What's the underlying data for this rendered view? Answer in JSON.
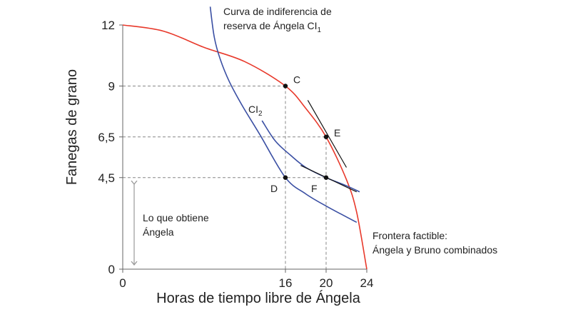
{
  "chart_data": {
    "type": "line",
    "xlabel": "Horas de tiempo libre de Ángela",
    "ylabel": "Fanegas de grano",
    "xlim": [
      0,
      24
    ],
    "ylim": [
      0,
      12
    ],
    "x_ticks": [
      {
        "value": 0,
        "label": "0"
      },
      {
        "value": 16,
        "label": "16"
      },
      {
        "value": 20,
        "label": "20"
      },
      {
        "value": 24,
        "label": "24"
      }
    ],
    "y_ticks": [
      {
        "value": 0,
        "label": "0"
      },
      {
        "value": 4.5,
        "label": "4,5"
      },
      {
        "value": 6.5,
        "label": "6,5"
      },
      {
        "value": 9,
        "label": "9"
      },
      {
        "value": 12,
        "label": "12"
      }
    ],
    "grid": false,
    "colors": {
      "frontier": "#e8392b",
      "indifference": "#3a4fa3",
      "guides": "#888888",
      "tangent": "#111111",
      "points": "#111111"
    },
    "series": [
      {
        "key": "frontier",
        "x": [
          0,
          4,
          8,
          12,
          16,
          18,
          20,
          22,
          23,
          24
        ],
        "y": [
          12,
          11.7,
          10.9,
          10.2,
          9,
          7.9,
          6.5,
          4.4,
          2.8,
          0
        ]
      },
      {
        "key": "ci1",
        "x": [
          8.6,
          9.0,
          9.6,
          10.5,
          11.8,
          13.5,
          16,
          18,
          20,
          21.5,
          23
        ],
        "y": [
          12.9,
          11.4,
          10.3,
          9.2,
          8.0,
          6.6,
          4.5,
          3.7,
          3.1,
          2.7,
          2.3
        ]
      },
      {
        "key": "ci2",
        "x": [
          13.7,
          15,
          16.5,
          18,
          20,
          22,
          23.3
        ],
        "y": [
          7.3,
          6.3,
          5.6,
          5.0,
          4.5,
          4.1,
          3.8
        ]
      }
    ],
    "tangent_lines": [
      {
        "at": "E",
        "x": [
          18.2,
          22.0
        ],
        "y": [
          8.3,
          5.0
        ]
      },
      {
        "at": "F",
        "x": [
          17.5,
          23.0
        ],
        "y": [
          5.1,
          3.8
        ]
      }
    ],
    "points": [
      {
        "label": "C",
        "x": 16,
        "y": 9
      },
      {
        "label": "E",
        "x": 20,
        "y": 6.5
      },
      {
        "label": "D",
        "x": 16,
        "y": 4.5
      },
      {
        "label": "F",
        "x": 20,
        "y": 4.5
      }
    ],
    "annotations": {
      "ci1_line1": "Curva de indiferencia de",
      "ci1_line2": "reserva de Ángela CI",
      "ci1_sub": "1",
      "ci2_main": "CI",
      "ci2_sub": "2",
      "obtiene_line1": "Lo que obtiene",
      "obtiene_line2": "Ángela",
      "frontier_line1": "Frontera factible:",
      "frontier_line2": "Ángela y Bruno combinados"
    }
  }
}
